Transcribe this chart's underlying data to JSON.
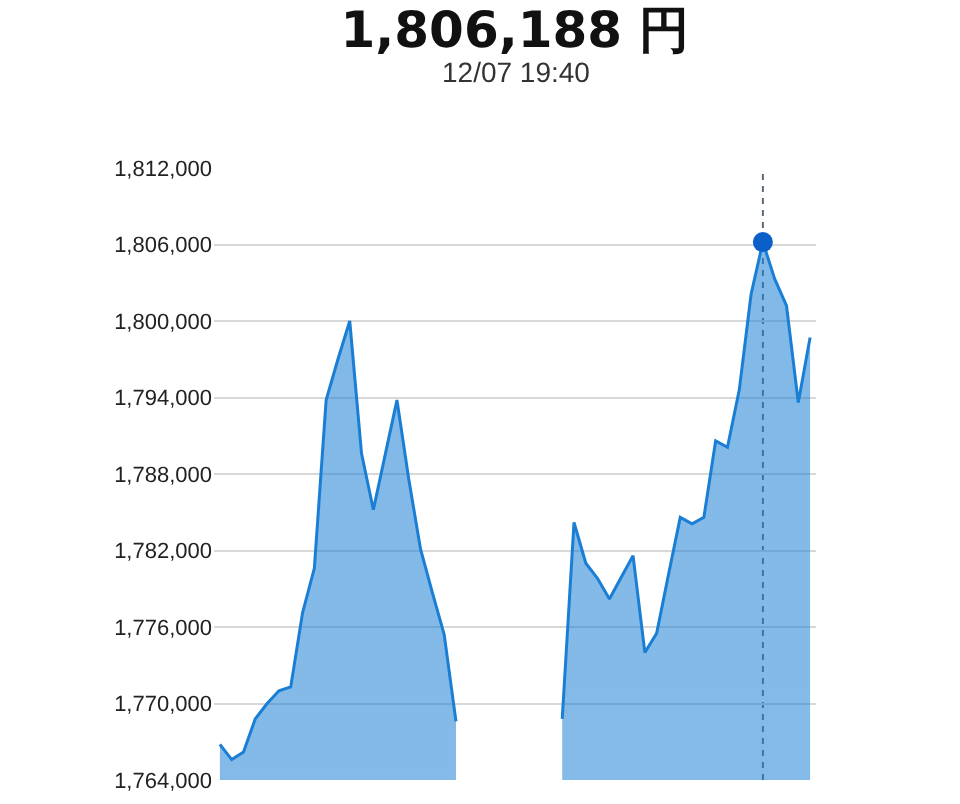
{
  "chart_data": {
    "type": "area",
    "title": "1,806,188 円",
    "subtitle": "12/07 19:40",
    "categories": [
      null,
      null,
      null,
      null,
      null,
      null,
      null,
      null,
      null,
      null,
      null,
      null,
      null,
      null,
      null,
      null,
      null,
      null,
      null,
      null,
      null,
      null,
      null,
      null,
      null,
      null,
      null,
      null,
      null,
      null,
      null,
      null,
      null,
      null,
      null,
      null,
      null,
      null,
      null,
      null,
      null,
      null,
      null,
      null,
      null,
      null,
      null,
      null,
      null,
      null,
      null
    ],
    "series": [
      {
        "color": "#1a7fd4",
        "values": [
          1766800,
          1765600,
          1766200,
          1768800,
          1770000,
          1771000,
          1771300,
          1777100,
          1780600,
          1793800,
          1797000,
          1800000,
          1789600,
          1785200,
          1789500,
          1793800,
          1787600,
          1782100,
          1778700,
          1775400,
          1768600,
          null,
          null,
          null,
          null,
          null,
          null,
          null,
          null,
          1768800,
          1784200,
          1781000,
          1779800,
          1778200,
          1779900,
          1781600,
          1774000,
          1775500,
          1780100,
          1784600,
          1784100,
          1784600,
          1790600,
          1790100,
          1794600,
          1802100,
          1806200,
          1803300,
          1801200,
          1793600,
          1798700
        ]
      },
      {
        "type": "scatter",
        "color": "#0a5fc8",
        "marker": "circle",
        "values": [
          null,
          null,
          null,
          null,
          null,
          null,
          null,
          null,
          null,
          null,
          null,
          null,
          null,
          null,
          null,
          null,
          null,
          null,
          null,
          null,
          null,
          null,
          null,
          null,
          null,
          null,
          null,
          null,
          null,
          null,
          null,
          null,
          null,
          null,
          null,
          null,
          null,
          null,
          null,
          null,
          null,
          null,
          null,
          null,
          null,
          null,
          1806188,
          null,
          null,
          null,
          null
        ]
      }
    ],
    "ylim": [
      1764000,
      1812000
    ],
    "yticks": [
      {
        "value": 1764000,
        "label": "1,764,000"
      },
      {
        "value": 1770000,
        "label": "1,770,000"
      },
      {
        "value": 1776000,
        "label": "1,776,000"
      },
      {
        "value": 1782000,
        "label": "1,782,000"
      },
      {
        "value": 1788000,
        "label": "1,788,000"
      },
      {
        "value": 1794000,
        "label": "1,794,000"
      },
      {
        "value": 1800000,
        "label": "1,800,000"
      },
      {
        "value": 1806000,
        "label": "1,806,000"
      },
      {
        "value": 1812000,
        "label": "1,812,000"
      }
    ],
    "grid": "y",
    "tick_labels": "y",
    "legend": false
  }
}
